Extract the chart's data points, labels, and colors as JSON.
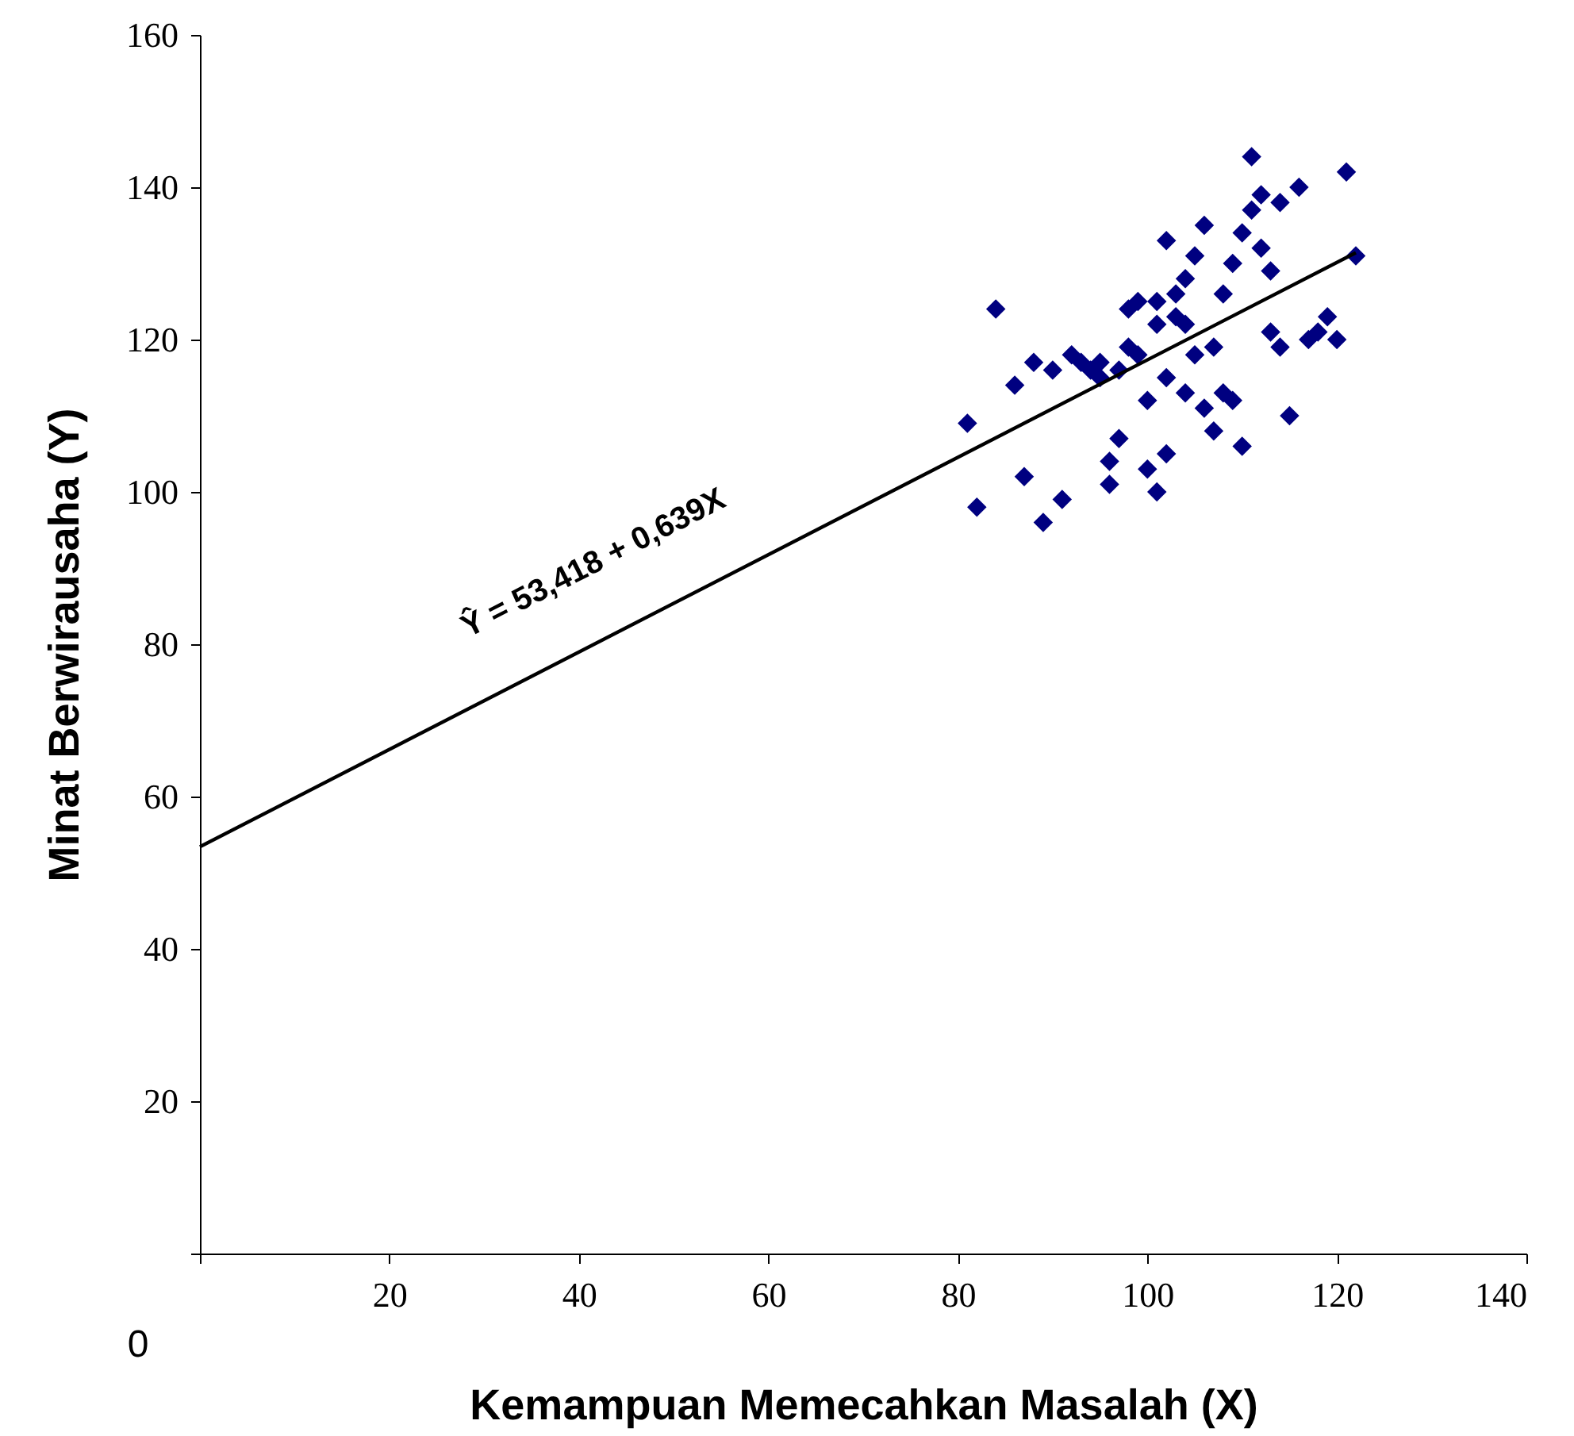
{
  "chart_data": {
    "type": "scatter",
    "xlabel": "Kemampuan Memecahkan Masalah (X)",
    "ylabel": "Minat Berwirausaha (Y)",
    "xlim": [
      0,
      140
    ],
    "xticks": [
      {
        "value": 0,
        "label": null
      },
      20,
      40,
      60,
      80,
      100,
      120,
      140
    ],
    "ylim": [
      0,
      160
    ],
    "yticks": [
      {
        "value": 0,
        "label": null
      },
      20,
      40,
      60,
      80,
      100,
      120,
      140,
      160
    ],
    "grid": false,
    "marker": "diamond",
    "annotations": [
      "0",
      "Ŷ = 53,418 + 0,639X"
    ],
    "series": [
      {
        "color": "#000080",
        "x": [
          81,
          82,
          84,
          86,
          87,
          88,
          89,
          90,
          91,
          92,
          93,
          94,
          95,
          95,
          96,
          96,
          97,
          97,
          98,
          98,
          99,
          99,
          100,
          100,
          101,
          101,
          101,
          102,
          102,
          102,
          103,
          103,
          104,
          104,
          104,
          105,
          105,
          106,
          106,
          107,
          107,
          108,
          108,
          109,
          109,
          110,
          110,
          111,
          111,
          112,
          112,
          113,
          113,
          114,
          114,
          116,
          115,
          117,
          118,
          119,
          120,
          121,
          122
        ],
        "values": [
          109,
          98,
          124,
          114,
          102,
          117,
          96,
          116,
          99,
          118,
          117,
          116,
          115,
          117,
          104,
          101,
          116,
          107,
          119,
          124,
          125,
          118,
          112,
          103,
          125,
          100,
          122,
          133,
          115,
          105,
          126,
          123,
          128,
          122,
          113,
          131,
          118,
          135,
          111,
          119,
          108,
          126,
          113,
          130,
          112,
          134,
          106,
          144,
          137,
          139,
          132,
          129,
          121,
          119,
          138,
          140,
          110,
          120,
          121,
          123,
          120,
          142,
          131
        ]
      },
      {
        "type": "line",
        "color": "#000000",
        "x": [
          0,
          122
        ],
        "values": [
          53.4,
          131.4
        ],
        "marker": "none"
      }
    ]
  }
}
